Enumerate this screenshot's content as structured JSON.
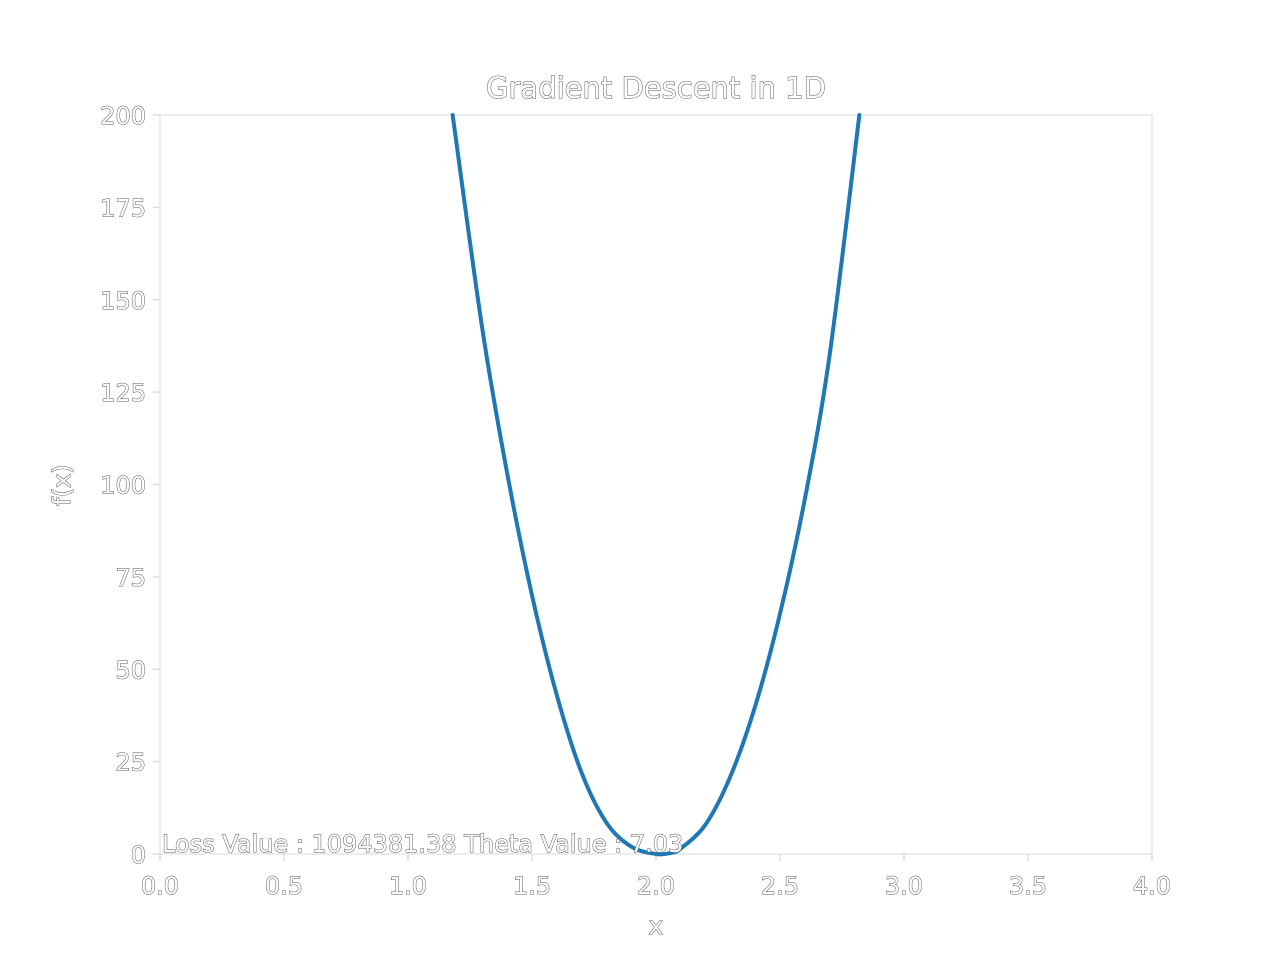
{
  "chart_data": {
    "type": "line",
    "title": "Gradient Descent in 1D",
    "xlabel": "x",
    "ylabel": "f(x)",
    "xlim": [
      0.0,
      4.0
    ],
    "ylim": [
      0,
      200
    ],
    "x_ticks": [
      "0.0",
      "0.5",
      "1.0",
      "1.5",
      "2.0",
      "2.5",
      "3.0",
      "3.5",
      "4.0"
    ],
    "y_ticks": [
      "0",
      "25",
      "50",
      "75",
      "100",
      "125",
      "150",
      "175",
      "200"
    ],
    "grid": false,
    "series": [
      {
        "color": "#1f77b4",
        "x": [
          1.18,
          1.3,
          1.4,
          1.5,
          1.6,
          1.7,
          1.8,
          1.9,
          2.0,
          2.06,
          2.1,
          2.2,
          2.3,
          2.4,
          2.5,
          2.6,
          2.7,
          2.82
        ],
        "y": [
          200,
          142,
          103,
          70,
          43,
          22,
          8.5,
          2,
          0,
          0.3,
          1.5,
          8,
          21,
          40,
          65,
          96,
          135,
          200
        ]
      }
    ],
    "annotation": "Loss Value : 1094381.38 Theta Value : 7.03"
  }
}
